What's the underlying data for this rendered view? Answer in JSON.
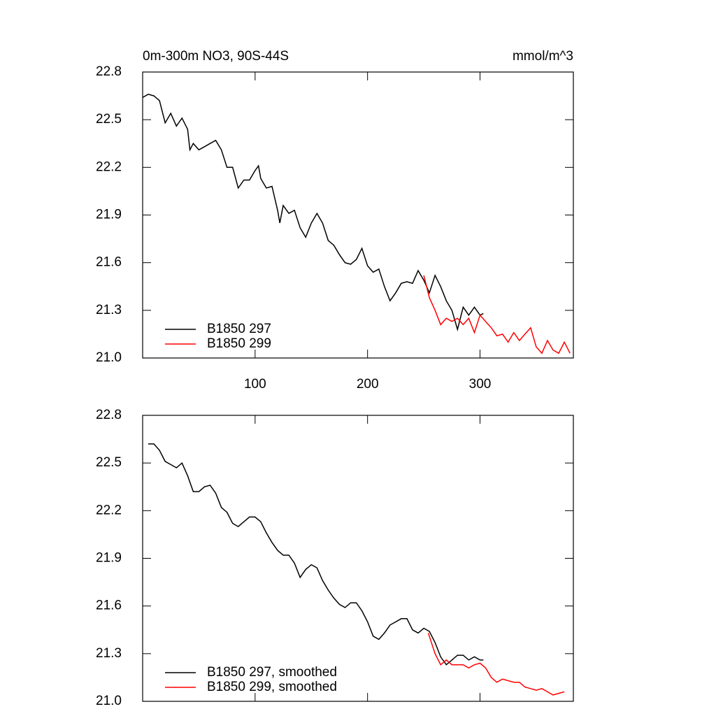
{
  "chart_data": [
    {
      "type": "line",
      "title": "0m-300m NO3, 90S-44S",
      "units": "mmol/m^3",
      "xlim": [
        0,
        383
      ],
      "xticks": [
        100,
        200,
        300
      ],
      "xtick_labels": true,
      "ylim": [
        21.0,
        22.8
      ],
      "yticks": [
        {
          "value": 21.0,
          "label": "21.0"
        },
        21.3,
        21.6,
        21.9,
        22.2,
        22.5,
        22.8
      ],
      "legend": "lower left",
      "series": [
        {
          "name": "B1850 297",
          "color": "#000000",
          "x": [
            0,
            5,
            10,
            15,
            20,
            25,
            30,
            35,
            40,
            42,
            45,
            50,
            55,
            60,
            65,
            70,
            75,
            80,
            85,
            90,
            95,
            100,
            103,
            105,
            110,
            115,
            120,
            122,
            125,
            130,
            135,
            140,
            145,
            150,
            155,
            160,
            165,
            170,
            175,
            180,
            185,
            190,
            195,
            200,
            205,
            210,
            215,
            220,
            225,
            230,
            235,
            240,
            245,
            250,
            255,
            260,
            265,
            270,
            275,
            280,
            285,
            290,
            295,
            300,
            303
          ],
          "values": [
            22.64,
            22.66,
            22.65,
            22.62,
            22.48,
            22.54,
            22.46,
            22.51,
            22.44,
            22.31,
            22.35,
            22.31,
            22.33,
            22.35,
            22.37,
            22.31,
            22.2,
            22.2,
            22.07,
            22.12,
            22.12,
            22.18,
            22.21,
            22.13,
            22.07,
            22.08,
            21.93,
            21.85,
            21.96,
            21.91,
            21.93,
            21.82,
            21.76,
            21.85,
            21.91,
            21.85,
            21.74,
            21.71,
            21.65,
            21.6,
            21.59,
            21.62,
            21.69,
            21.58,
            21.54,
            21.56,
            21.45,
            21.36,
            21.41,
            21.47,
            21.48,
            21.47,
            21.55,
            21.49,
            21.41,
            21.52,
            21.45,
            21.36,
            21.3,
            21.18,
            21.32,
            21.27,
            21.32,
            21.27,
            21.28
          ]
        },
        {
          "name": "B1850 299",
          "color": "#ff0000",
          "x": [
            250,
            255,
            260,
            265,
            270,
            275,
            280,
            285,
            290,
            295,
            300,
            305,
            310,
            315,
            320,
            325,
            330,
            335,
            340,
            345,
            350,
            355,
            360,
            365,
            370,
            375,
            380
          ],
          "values": [
            21.52,
            21.38,
            21.3,
            21.21,
            21.25,
            21.23,
            21.25,
            21.21,
            21.25,
            21.16,
            21.27,
            21.23,
            21.19,
            21.14,
            21.15,
            21.1,
            21.16,
            21.11,
            21.15,
            21.19,
            21.07,
            21.03,
            21.11,
            21.05,
            21.03,
            21.1,
            21.03
          ]
        }
      ]
    },
    {
      "type": "line",
      "xlim": [
        0,
        383
      ],
      "xticks": [
        100,
        200,
        300
      ],
      "xtick_labels": false,
      "ylim": [
        21.0,
        22.8
      ],
      "yticks": [
        {
          "value": 21.0,
          "label": "21.0"
        },
        21.3,
        21.6,
        21.9,
        22.2,
        22.5,
        22.8
      ],
      "legend": "lower left",
      "series": [
        {
          "name": "B1850 297, smoothed",
          "color": "#000000",
          "x": [
            5,
            10,
            15,
            20,
            25,
            30,
            35,
            40,
            45,
            50,
            55,
            60,
            65,
            70,
            75,
            80,
            85,
            90,
            95,
            100,
            105,
            110,
            115,
            120,
            125,
            130,
            135,
            140,
            145,
            150,
            155,
            160,
            165,
            170,
            175,
            180,
            185,
            190,
            195,
            200,
            205,
            210,
            215,
            220,
            225,
            230,
            235,
            240,
            245,
            250,
            255,
            260,
            265,
            270,
            275,
            280,
            285,
            290,
            295,
            300,
            303
          ],
          "values": [
            22.62,
            22.62,
            22.58,
            22.51,
            22.49,
            22.47,
            22.5,
            22.42,
            22.32,
            22.32,
            22.35,
            22.36,
            22.31,
            22.22,
            22.19,
            22.12,
            22.1,
            22.13,
            22.16,
            22.16,
            22.13,
            22.06,
            22.0,
            21.95,
            21.92,
            21.92,
            21.87,
            21.78,
            21.83,
            21.86,
            21.84,
            21.76,
            21.7,
            21.65,
            21.61,
            21.59,
            21.62,
            21.62,
            21.57,
            21.5,
            21.41,
            21.39,
            21.43,
            21.48,
            21.5,
            21.52,
            21.52,
            21.45,
            21.43,
            21.46,
            21.44,
            21.37,
            21.28,
            21.23,
            21.26,
            21.29,
            21.29,
            21.26,
            21.28,
            21.26,
            21.26
          ]
        },
        {
          "name": "B1850 299, smoothed",
          "color": "#ff0000",
          "x": [
            254,
            260,
            265,
            270,
            275,
            280,
            285,
            290,
            295,
            300,
            305,
            310,
            315,
            320,
            325,
            330,
            335,
            340,
            345,
            350,
            355,
            360,
            365,
            370,
            375
          ],
          "values": [
            21.43,
            21.3,
            21.23,
            21.26,
            21.23,
            21.23,
            21.23,
            21.21,
            21.23,
            21.24,
            21.21,
            21.15,
            21.12,
            21.14,
            21.13,
            21.12,
            21.12,
            21.09,
            21.08,
            21.07,
            21.08,
            21.06,
            21.04,
            21.05,
            21.06
          ]
        }
      ]
    }
  ]
}
